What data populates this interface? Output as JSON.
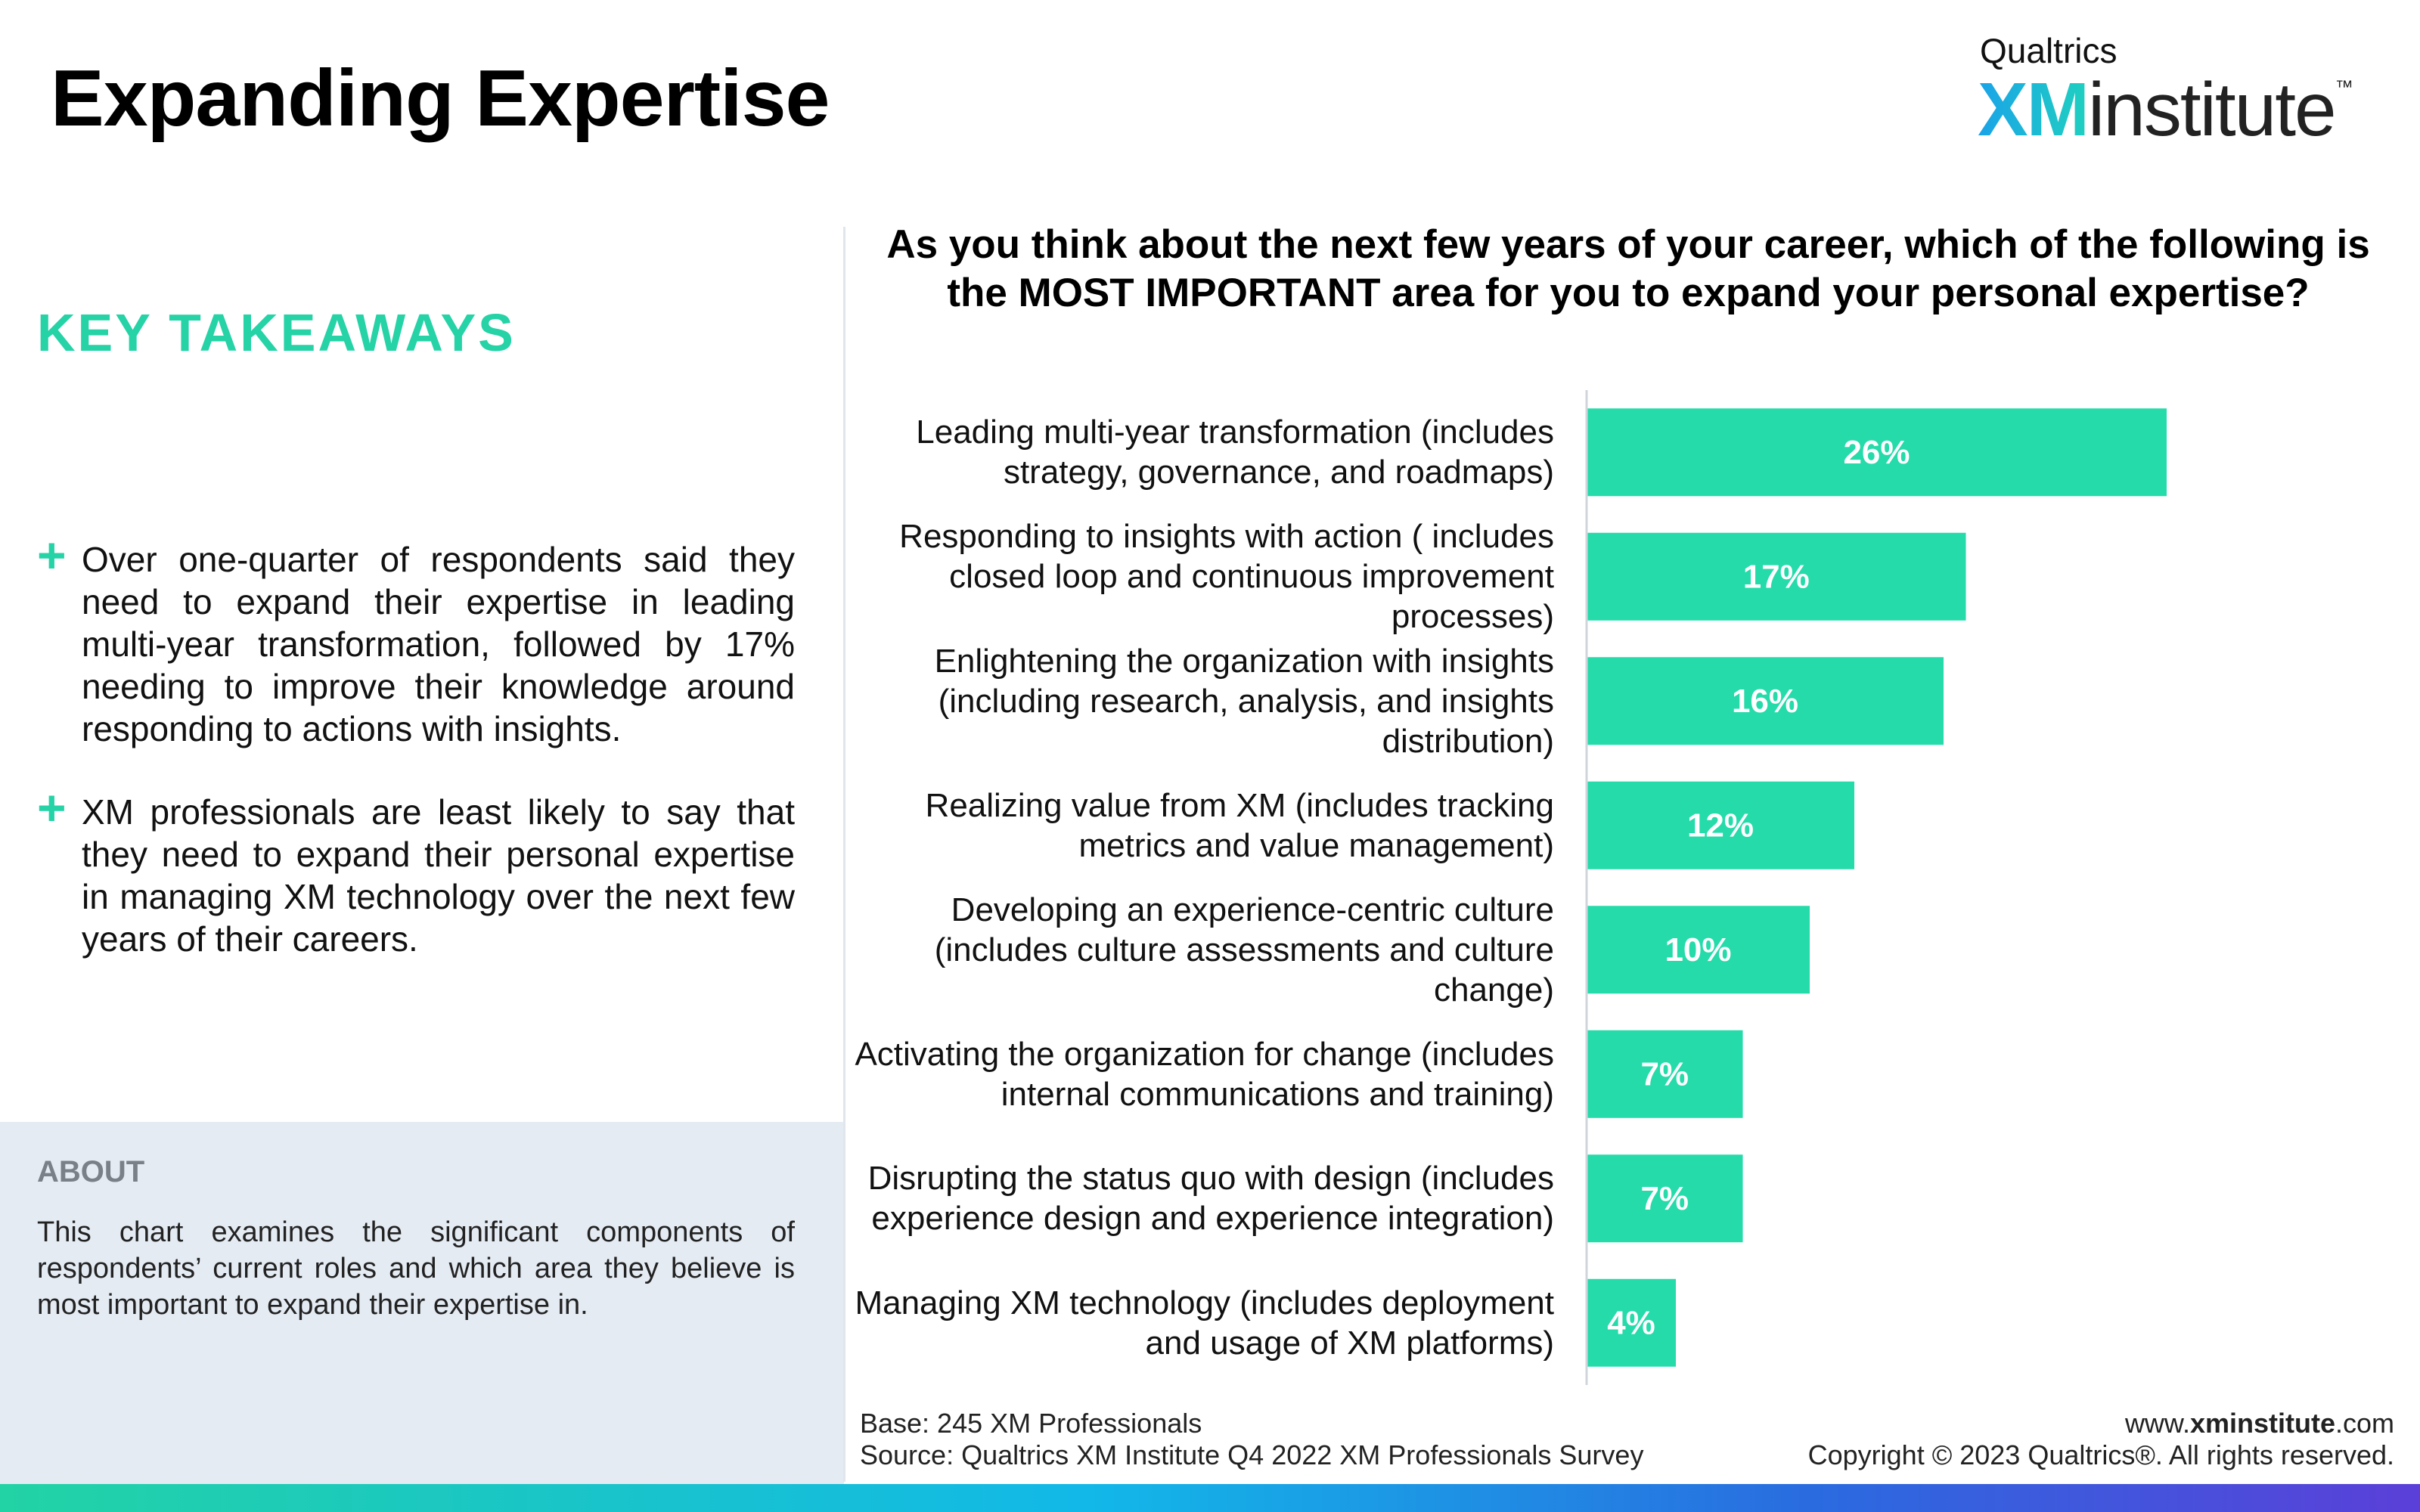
{
  "header": {
    "title": "Expanding Expertise"
  },
  "logo": {
    "brand": "Qualtrics",
    "xm": "XM",
    "name": "institute",
    "tm": "™"
  },
  "takeaways": {
    "heading": "KEY TAKEAWAYS",
    "marker": "+",
    "items": [
      "Over one-quarter of respondents said they need to expand their expertise in leading multi-year transformation, followed by 17% needing to improve their knowledge around responding to actions with insights.",
      "XM professionals are least likely to say that they need to expand their personal expertise in managing XM technology over the next few years of their careers."
    ]
  },
  "about": {
    "heading": "ABOUT",
    "text": "This chart examines the significant components of respondents’ current roles and which area they believe is most important to expand their expertise in."
  },
  "chart_data": {
    "type": "bar",
    "orientation": "horizontal",
    "title": "As you think about the next few years of your career, which of the following is the MOST IMPORTANT area for you to expand your personal expertise?",
    "categories": [
      "Leading multi-year transformation (includes strategy, governance, and roadmaps)",
      "Responding to insights with action ( includes closed loop and continuous improvement processes)",
      "Enlightening the organization with insights (including research, analysis, and insights distribution)",
      "Realizing value from XM (includes tracking metrics and value management)",
      "Developing an experience-centric culture (includes culture assessments and culture change)",
      "Activating the organization for change (includes internal communications and training)",
      "Disrupting the status quo with design (includes experience design and experience integration)",
      "Managing XM technology (includes deployment and usage of XM platforms)"
    ],
    "values": [
      26,
      17,
      16,
      12,
      10,
      7,
      7,
      4
    ],
    "value_labels": [
      "26%",
      "17%",
      "16%",
      "12%",
      "10%",
      "7%",
      "7%",
      "4%"
    ],
    "color": "#24dba9",
    "xlim": [
      0,
      30
    ]
  },
  "footer": {
    "base": "Base: 245 XM Professionals",
    "source": "Source: Qualtrics XM Institute Q4 2022 XM Professionals Survey",
    "url": [
      "www.",
      "xminstitute",
      ".com"
    ],
    "copyright": "Copyright © 2023 Qualtrics®. All rights reserved."
  }
}
